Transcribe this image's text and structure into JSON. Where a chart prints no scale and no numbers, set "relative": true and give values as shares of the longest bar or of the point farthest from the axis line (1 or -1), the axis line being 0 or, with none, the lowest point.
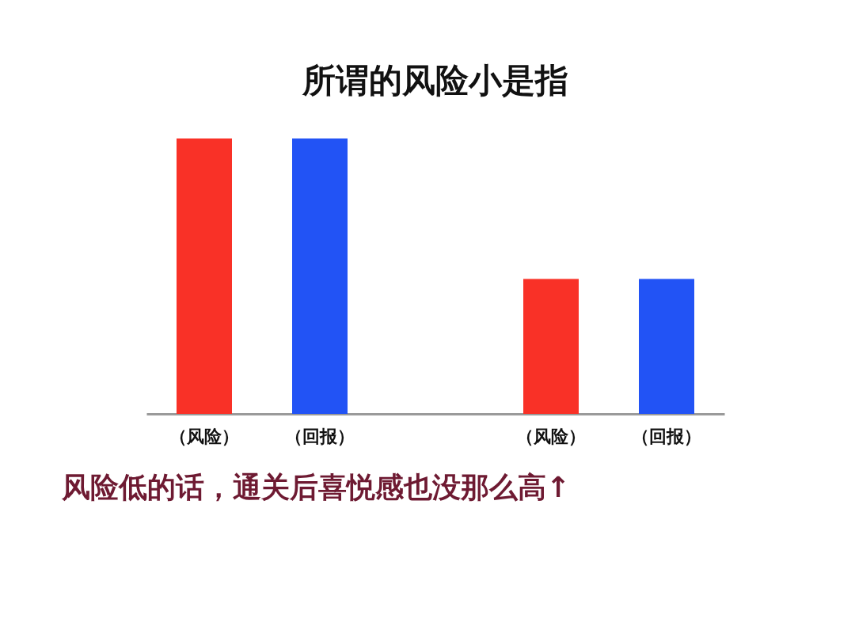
{
  "chart_data": {
    "type": "bar",
    "title": "所谓的风险小是指",
    "categories": [
      "（风险）",
      "（回报）",
      null,
      "（风险）",
      "（回报）"
    ],
    "values": [
      1,
      1,
      null,
      0.49,
      0.49
    ],
    "colors": [
      "#f93127",
      "#2253f5",
      "#ffffff",
      "#f93127",
      "#2253f5"
    ],
    "relative": true,
    "annotations": [
      "风险低的话，通关后喜悦感也没那么高↑"
    ]
  }
}
